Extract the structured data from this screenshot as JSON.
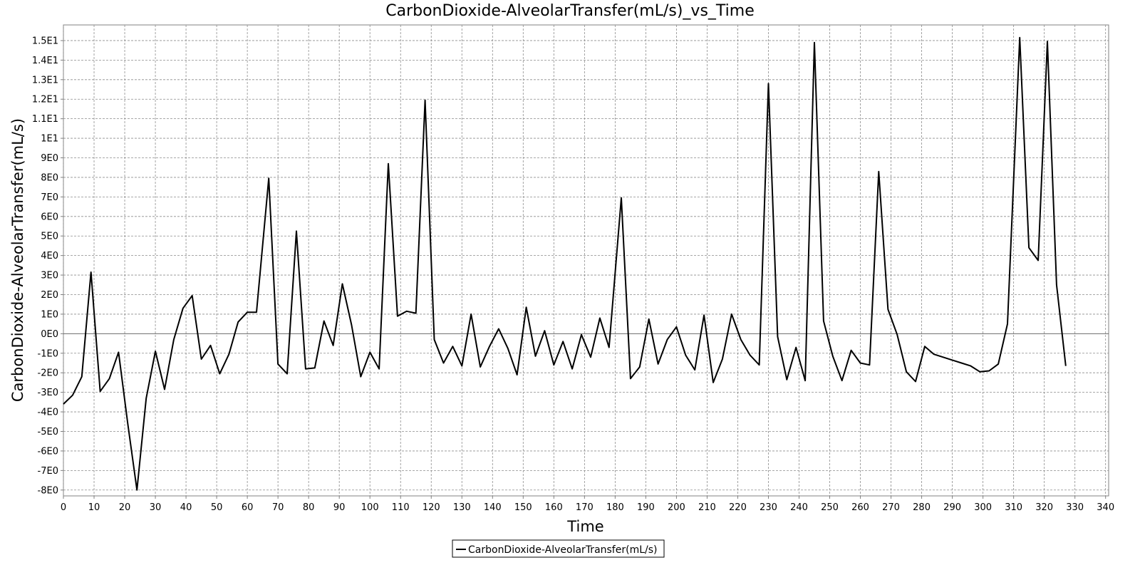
{
  "chart_data": {
    "type": "line",
    "title": "CarbonDioxide-AlveolarTransfer(mL/s)_vs_Time",
    "xlabel": "Time",
    "ylabel": "CarbonDioxide-AlveolarTransfer(mL/s)",
    "xlim": [
      0,
      341
    ],
    "ylim": [
      -8.3,
      15.8
    ],
    "x_ticks": [
      0,
      10,
      20,
      30,
      40,
      50,
      60,
      70,
      80,
      90,
      100,
      110,
      120,
      130,
      140,
      150,
      160,
      170,
      180,
      190,
      200,
      210,
      220,
      230,
      240,
      250,
      260,
      270,
      280,
      290,
      300,
      310,
      320,
      330,
      340
    ],
    "y_ticks": [
      {
        "value": -8,
        "label": "-8E0"
      },
      {
        "value": -7,
        "label": "-7E0"
      },
      {
        "value": -6,
        "label": "-6E0"
      },
      {
        "value": -5,
        "label": "-5E0"
      },
      {
        "value": -4,
        "label": "-4E0"
      },
      {
        "value": -3,
        "label": "-3E0"
      },
      {
        "value": -2,
        "label": "-2E0"
      },
      {
        "value": -1,
        "label": "-1E0"
      },
      {
        "value": 0,
        "label": "0E0"
      },
      {
        "value": 1,
        "label": "1E0"
      },
      {
        "value": 2,
        "label": "2E0"
      },
      {
        "value": 3,
        "label": "3E0"
      },
      {
        "value": 4,
        "label": "4E0"
      },
      {
        "value": 5,
        "label": "5E0"
      },
      {
        "value": 6,
        "label": "6E0"
      },
      {
        "value": 7,
        "label": "7E0"
      },
      {
        "value": 8,
        "label": "8E0"
      },
      {
        "value": 9,
        "label": "9E0"
      },
      {
        "value": 10,
        "label": "1E1"
      },
      {
        "value": 11,
        "label": "1.1E1"
      },
      {
        "value": 12,
        "label": "1.2E1"
      },
      {
        "value": 13,
        "label": "1.3E1"
      },
      {
        "value": 14,
        "label": "1.4E1"
      },
      {
        "value": 15,
        "label": "1.5E1"
      }
    ],
    "grid": true,
    "legend_position": "bottom-center",
    "series": [
      {
        "name": "CarbonDioxide-AlveolarTransfer(mL/s)",
        "color": "#000000",
        "x": [
          0,
          3,
          6,
          9,
          12,
          15,
          18,
          21,
          24,
          27,
          30,
          33,
          36,
          39,
          42,
          45,
          48,
          51,
          54,
          57,
          60,
          63,
          67,
          70,
          73,
          76,
          79,
          82,
          85,
          88,
          91,
          94,
          97,
          100,
          103,
          106,
          109,
          112,
          115,
          118,
          121,
          124,
          127,
          130,
          133,
          136,
          139,
          142,
          145,
          148,
          151,
          154,
          157,
          160,
          163,
          166,
          169,
          172,
          175,
          178,
          182,
          185,
          188,
          191,
          194,
          197,
          200,
          203,
          206,
          209,
          212,
          215,
          218,
          221,
          224,
          227,
          230,
          233,
          236,
          239,
          242,
          245,
          248,
          251,
          254,
          257,
          260,
          263,
          266,
          269,
          272,
          275,
          278,
          281,
          284,
          287,
          290,
          293,
          296,
          299,
          302,
          305,
          308,
          312,
          315,
          318,
          321,
          324,
          327
        ],
        "y": [
          -3.6,
          -3.15,
          -2.2,
          3.15,
          -2.95,
          -2.3,
          -0.95,
          -4.6,
          -8.0,
          -3.3,
          -0.9,
          -2.85,
          -0.3,
          1.3,
          1.95,
          -1.3,
          -0.6,
          -2.05,
          -1.05,
          0.6,
          1.1,
          1.1,
          7.95,
          -1.55,
          -2.05,
          5.25,
          -1.8,
          -1.75,
          0.65,
          -0.6,
          2.55,
          0.45,
          -2.2,
          -0.95,
          -1.8,
          8.7,
          0.9,
          1.15,
          1.05,
          11.95,
          -0.3,
          -1.5,
          -0.65,
          -1.65,
          1.0,
          -1.7,
          -0.65,
          0.25,
          -0.75,
          -2.1,
          1.35,
          -1.15,
          0.15,
          -1.6,
          -0.4,
          -1.8,
          -0.05,
          -1.2,
          0.8,
          -0.7,
          6.95,
          -2.3,
          -1.7,
          0.75,
          -1.55,
          -0.3,
          0.35,
          -1.1,
          -1.85,
          0.95,
          -2.5,
          -1.3,
          1.0,
          -0.3,
          -1.1,
          -1.6,
          12.8,
          -0.15,
          -2.35,
          -0.7,
          -2.4,
          14.9,
          0.65,
          -1.15,
          -2.4,
          -0.85,
          -1.5,
          -1.6,
          8.3,
          1.25,
          -0.05,
          -1.95,
          -2.45,
          -0.65,
          -1.05,
          -1.2,
          -1.35,
          -1.5,
          -1.65,
          -1.95,
          -1.9,
          -1.55,
          0.5,
          15.15,
          4.4,
          3.75,
          14.95,
          2.5,
          -1.65
        ]
      }
    ]
  }
}
